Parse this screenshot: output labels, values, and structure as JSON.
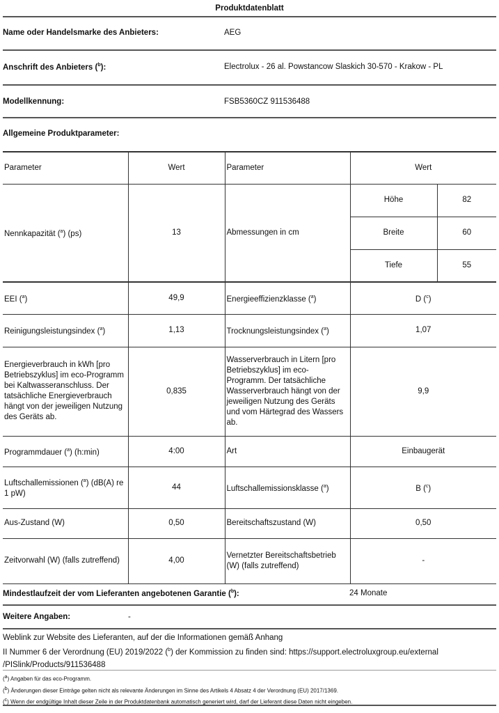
{
  "title": "Produktdatenblatt",
  "header": [
    {
      "label": "Name oder Handelsmarke des Anbieters:",
      "value": "AEG"
    },
    {
      "label": "Anschrift des Anbieters (",
      "sup": "b",
      "label_end": "):",
      "value": "Electrolux - 26 al. Powstancow Slaskich 30-570 - Krakow - PL"
    },
    {
      "label": "Modellkennung:",
      "value": "FSB5360CZ 911536488"
    }
  ],
  "section": "Allgemeine Produktparameter:",
  "table": {
    "headers": [
      "Parameter",
      "Wert",
      "Parameter",
      "Wert"
    ],
    "capacity": {
      "label": "Nennkapazität (",
      "sup": "a",
      "label_end": ") (ps)",
      "value": "13"
    },
    "dimensions": {
      "label": "Abmessungen in cm",
      "items": [
        {
          "name": "Höhe",
          "value": "82"
        },
        {
          "name": "Breite",
          "value": "60"
        },
        {
          "name": "Tiefe",
          "value": "55"
        }
      ]
    },
    "rows": [
      {
        "p1": "EEI (",
        "s1": "a",
        "e1": ")",
        "v1": "49,9",
        "p2": "Energieeffizienzklasse (",
        "s2": "a",
        "e2": ")",
        "v2": "D (",
        "vs2": "c",
        "ve2": ")"
      },
      {
        "p1": "Reinigungsleistungsindex (",
        "s1": "a",
        "e1": ")",
        "v1": "1,13",
        "p2": "Trocknungsleistungsindex (",
        "s2": "a",
        "e2": ")",
        "v2": "1,07"
      },
      {
        "p1": "Energieverbrauch in kWh [pro Betriebszyklus] im eco-Programm bei Kaltwasseranschluss. Der tatsächliche Energieverbrauch hängt von der jeweiligen Nutzung des Geräts ab.",
        "v1": "0,835",
        "p2": "Wasserverbrauch in Litern [pro Betriebszyklus] im eco-Programm. Der tatsächliche Wasserverbrauch hängt von der jeweiligen Nutzung des Geräts und vom Härtegrad des Wassers ab.",
        "v2": "9,9"
      },
      {
        "p1": "Programmdauer (",
        "s1": "a",
        "e1": ") (h:min)",
        "v1": "4:00",
        "p2": "Art",
        "v2": "Einbaugerät"
      },
      {
        "p1": "Luftschallemissionen (",
        "s1": "a",
        "e1": ") (dB(A) re 1 pW)",
        "v1": "44",
        "p2": "Luftschallemissionsklasse (",
        "s2": "a",
        "e2": ")",
        "v2": "B (",
        "vs2": "c",
        "ve2": ")"
      },
      {
        "p1": "Aus-Zustand (W)",
        "v1": "0,50",
        "p2": "Bereitschaftszustand (W)",
        "v2": "0,50"
      },
      {
        "p1": "Zeitvorwahl (W) (falls zutreffend)",
        "v1": "4,00",
        "p2": "Vernetzter Bereitschaftsbetrieb (W) (falls zutreffend)",
        "v2": "-"
      }
    ]
  },
  "warranty": {
    "label": "Mindestlaufzeit der vom Lieferanten angebotenen Garantie (",
    "sup": "b",
    "label_end": "):",
    "value": "24 Monate"
  },
  "further": {
    "label": "Weitere Angaben:",
    "value": "-"
  },
  "weblink": {
    "line1": "Weblink zur Website des Lieferanten, auf der die Informationen gemäß Anhang",
    "line2a": "II Nummer 6 der Verordnung (EU) 2019/2022 (",
    "sup": "b",
    "line2b": ") der Kommission zu finden sind: https://support.electroluxgroup.eu/external",
    "line3": "/PISlink/Products/911536488"
  },
  "footnotes": [
    {
      "mark": "a",
      "text": "Angaben für das eco-Programm."
    },
    {
      "mark": "b",
      "text": "Änderungen dieser Einträge gelten nicht als relevante Änderungen im Sinne des Artikels 4 Absatz 4 der Verordnung (EU) 2017/1369."
    },
    {
      "mark": "c",
      "text": "Wenn der endgültige Inhalt dieser Zeile in der Produktdatenbank automatisch generiert wird, darf der Lieferant diese Daten nicht eingeben."
    }
  ]
}
